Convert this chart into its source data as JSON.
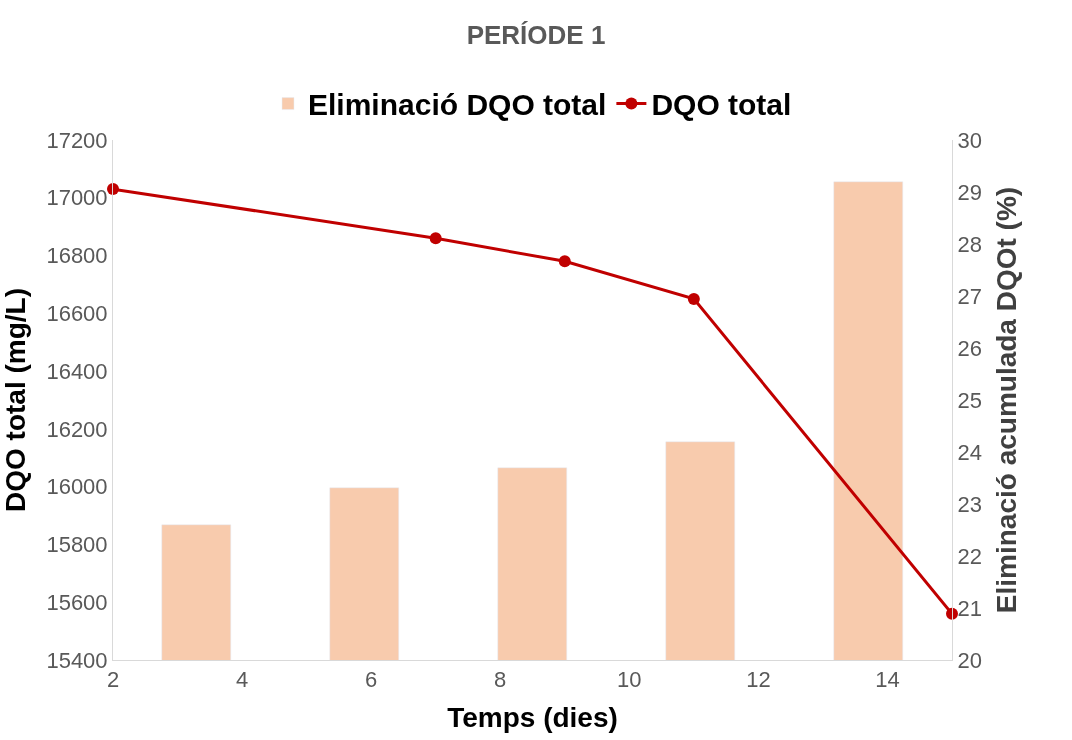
{
  "chart_data": {
    "type": "line",
    "title": "PERÍODE 1",
    "xlabel": "Temps (dies)",
    "ylabel": "DQO total (mg/L)",
    "y2label": "Eliminació acumulada DQOt (%)",
    "series": [
      {
        "name": "Eliminació DQO total",
        "type": "bar",
        "axis": "y2",
        "color": "#f8cbad",
        "x": [
          3.3,
          5.9,
          8.5,
          11.1,
          13.7
        ],
        "values": [
          22.6,
          23.3,
          23.7,
          24.2,
          29.2
        ]
      },
      {
        "name": "DQO total",
        "color": "#c00000",
        "marker": "circle",
        "x": [
          2,
          7,
          9,
          11,
          15
        ],
        "values": [
          17030,
          16860,
          16780,
          16650,
          15560
        ]
      }
    ],
    "xlim": [
      2,
      15
    ],
    "xticks": [
      2,
      4,
      6,
      8,
      10,
      12,
      14
    ],
    "ylim": [
      15400,
      17200
    ],
    "yticks": [
      15400,
      15600,
      15800,
      16000,
      16200,
      16400,
      16600,
      16800,
      17000,
      17200
    ],
    "y2lim": [
      20,
      30
    ],
    "y2ticks": [
      20,
      21,
      22,
      23,
      24,
      25,
      26,
      27,
      28,
      29,
      30
    ],
    "legend": "top"
  }
}
